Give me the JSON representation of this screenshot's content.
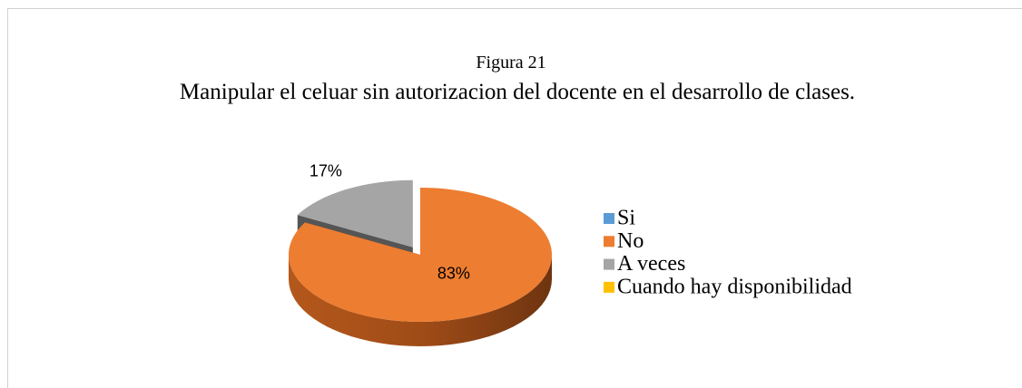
{
  "chart_data": {
    "type": "pie3d",
    "subtitle": "Figura 21",
    "title": "Manipular el celuar sin autorizacion del docente en el desarrollo de clases.",
    "categories": [
      "Si",
      "No",
      "A veces",
      "Cuando hay disponibilidad"
    ],
    "values": [
      0,
      83,
      17,
      0
    ],
    "value_labels": [
      null,
      "83%",
      "17%",
      null
    ],
    "colors": [
      "#5b9bd5",
      "#ed7d31",
      "#a5a5a5",
      "#ffc000"
    ],
    "legend": "right"
  }
}
